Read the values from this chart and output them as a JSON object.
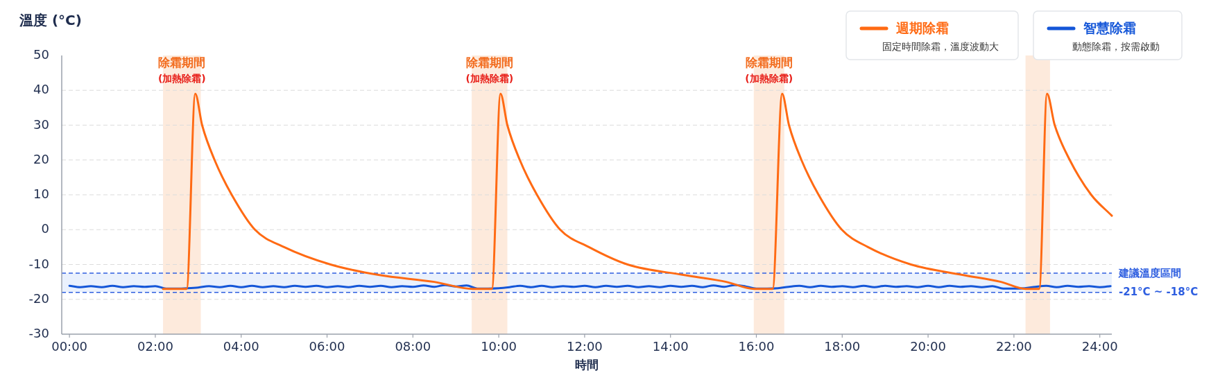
{
  "chart_data": {
    "type": "line",
    "ylabel": "溫度 (°C)",
    "xlabel": "時間",
    "xlim": [
      -0.18,
      24.28
    ],
    "ylim": [
      -30,
      50
    ],
    "xticks": [
      {
        "value": 0,
        "label": "00:00"
      },
      {
        "value": 2,
        "label": "02:00"
      },
      {
        "value": 4,
        "label": "04:00"
      },
      {
        "value": 6,
        "label": "06:00"
      },
      {
        "value": 8,
        "label": "08:00"
      },
      {
        "value": 10,
        "label": "10:00"
      },
      {
        "value": 12,
        "label": "12:00"
      },
      {
        "value": 14,
        "label": "14:00"
      },
      {
        "value": 16,
        "label": "16:00"
      },
      {
        "value": 18,
        "label": "18:00"
      },
      {
        "value": 20,
        "label": "20:00"
      },
      {
        "value": 22,
        "label": "22:00"
      },
      {
        "value": 24,
        "label": "24:00"
      }
    ],
    "yticks": [
      -30,
      -20,
      -10,
      0,
      10,
      20,
      30,
      40,
      50
    ],
    "grid": "y",
    "legend": "top right",
    "series": [
      {
        "name": "週期除霜",
        "color": "#ff6a13",
        "x": [
          2.18,
          2.73,
          2.93,
          3.09,
          3.38,
          3.78,
          4.32,
          5.0,
          6.08,
          7.2,
          8.5,
          9.4,
          9.84,
          10.04,
          10.2,
          10.49,
          10.89,
          11.43,
          12.1,
          13.0,
          14.3,
          15.3,
          15.95,
          16.38,
          16.6,
          16.76,
          17.05,
          17.45,
          17.99,
          18.6,
          19.6,
          20.8,
          21.7,
          22.27,
          22.59,
          22.77,
          22.95,
          23.3,
          23.8,
          24.28
        ],
        "values": [
          -17,
          -17,
          39,
          30,
          20,
          10,
          0,
          -5,
          -10,
          -13,
          -15,
          -17,
          -17,
          39,
          30,
          20,
          10,
          0,
          -5,
          -10,
          -13,
          -15,
          -17,
          -17,
          39,
          30,
          20,
          10,
          0,
          -5,
          -10,
          -13,
          -15,
          -17,
          -17,
          39,
          30,
          20,
          10,
          4
        ]
      },
      {
        "name": "智慧除霜",
        "color": "#1456d8",
        "x": [
          0,
          0.25,
          0.5,
          0.75,
          1,
          1.25,
          1.5,
          1.75,
          2,
          2.25,
          2.5,
          2.75,
          3,
          3.25,
          3.5,
          3.75,
          4,
          4.25,
          4.5,
          4.75,
          5,
          5.25,
          5.5,
          5.75,
          6,
          6.25,
          6.5,
          6.75,
          7,
          7.25,
          7.5,
          7.75,
          8,
          8.25,
          8.5,
          8.75,
          9,
          9.25,
          9.5,
          9.75,
          10,
          10.25,
          10.5,
          10.75,
          11,
          11.25,
          11.5,
          11.75,
          12,
          12.25,
          12.5,
          12.75,
          13,
          13.25,
          13.5,
          13.75,
          14,
          14.25,
          14.5,
          14.75,
          15,
          15.25,
          15.5,
          15.75,
          16,
          16.25,
          16.5,
          16.75,
          17,
          17.25,
          17.5,
          17.75,
          18,
          18.25,
          18.5,
          18.75,
          19,
          19.25,
          19.5,
          19.75,
          20,
          20.25,
          20.5,
          20.75,
          21,
          21.25,
          21.5,
          21.75,
          22,
          22.25,
          22.5,
          22.75,
          23,
          23.25,
          23.5,
          23.75,
          24,
          24.25
        ],
        "values": [
          -16.1,
          -16.5,
          -16.2,
          -16.5,
          -16.1,
          -16.5,
          -16.2,
          -16.4,
          -16.2,
          -16.9,
          -16.9,
          -16.8,
          -16.6,
          -16.2,
          -16.5,
          -16.1,
          -16.5,
          -16.1,
          -16.5,
          -16.2,
          -16.5,
          -16.1,
          -16.4,
          -16.1,
          -16.5,
          -16.2,
          -16.5,
          -16.1,
          -16.4,
          -16.1,
          -16.5,
          -16.2,
          -16.4,
          -16.0,
          -16.4,
          -15.9,
          -16.3,
          -16.0,
          -16.9,
          -16.9,
          -16.8,
          -16.5,
          -16.1,
          -16.5,
          -16.1,
          -16.5,
          -16.2,
          -16.4,
          -16.1,
          -16.5,
          -16.1,
          -16.4,
          -16.1,
          -16.5,
          -16.2,
          -16.5,
          -16.1,
          -16.4,
          -16.1,
          -16.5,
          -16.0,
          -16.4,
          -15.9,
          -16.3,
          -16.9,
          -16.9,
          -16.8,
          -16.4,
          -16.1,
          -16.5,
          -16.1,
          -16.4,
          -16.2,
          -16.5,
          -16.1,
          -16.5,
          -16.1,
          -16.4,
          -16.2,
          -16.5,
          -16.1,
          -16.5,
          -16.1,
          -16.4,
          -16.2,
          -16.5,
          -16.2,
          -16.9,
          -16.9,
          -16.8,
          -16.4,
          -16.1,
          -16.5,
          -16.1,
          -16.4,
          -16.2,
          -16.5,
          -16.2
        ]
      }
    ],
    "bands": [
      {
        "axis": "y",
        "from": -18,
        "to": -12.5,
        "color": "#eaf1fd"
      },
      {
        "axis": "x",
        "from": 2.18,
        "to": 3.06,
        "label": "除霜期間",
        "color": "#fdeadc"
      },
      {
        "axis": "x",
        "from": 9.37,
        "to": 10.2,
        "label": "除霜期間",
        "color": "#fdeadc"
      },
      {
        "axis": "x",
        "from": 15.94,
        "to": 16.65,
        "label": "除霜期間",
        "color": "#fdeadc"
      },
      {
        "axis": "x",
        "from": 22.27,
        "to": 22.84,
        "color": "#fdeadc"
      }
    ],
    "ref_lines": [
      {
        "axis": "y",
        "value": -12.5,
        "label": "建議溫度區間",
        "color": "#2f5fe0",
        "line_style": "dashed"
      },
      {
        "axis": "y",
        "value": -18,
        "label": "-21°C ~ -18°C",
        "color": "#2f5fe0",
        "line_style": "dashed"
      }
    ],
    "annotations": [
      "固定時間除霜，溫度波動大",
      "動態除霜，按需啟動",
      "(加熱除霜)",
      "(加熱除霜)",
      "(加熱除霜)"
    ]
  }
}
